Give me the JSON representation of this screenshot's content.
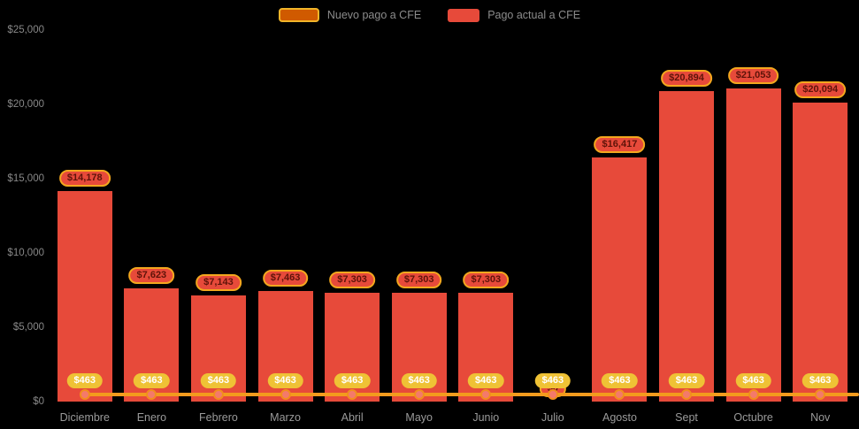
{
  "legend": {
    "items": [
      {
        "label": "Nuevo pago a CFE",
        "color": "#D05A00",
        "border": "#F0B429",
        "type": "line"
      },
      {
        "label": "Pago actual a CFE",
        "color": "#E74A3A",
        "type": "bar"
      }
    ]
  },
  "y_axis": {
    "ticks": [
      {
        "value": 0,
        "label": "$0"
      },
      {
        "value": 5000,
        "label": "$5,000"
      },
      {
        "value": 10000,
        "label": "$10,000"
      },
      {
        "value": 15000,
        "label": "$15,000"
      },
      {
        "value": 20000,
        "label": "$20,000"
      },
      {
        "value": 25000,
        "label": "$25,000"
      }
    ]
  },
  "chart_data": {
    "type": "bar",
    "categories": [
      "Diciembre",
      "Enero",
      "Febrero",
      "Marzo",
      "Abril",
      "Mayo",
      "Junio",
      "Julio",
      "Agosto",
      "Sept",
      "Octubre",
      "Nov"
    ],
    "series": [
      {
        "name": "Pago actual a CFE",
        "type": "bar",
        "color": "#E74A3A",
        "values": [
          14178,
          7623,
          7143,
          7463,
          7303,
          7303,
          7303,
          0,
          16417,
          20894,
          21053,
          20094
        ],
        "labels": [
          "$14,178",
          "$7,623",
          "$7,143",
          "$7,463",
          "$7,303",
          "$7,303",
          "$7,303",
          "$0",
          "$16,417",
          "$20,894",
          "$21,053",
          "$20,094"
        ]
      },
      {
        "name": "Nuevo pago a CFE",
        "type": "line",
        "color": "#F39B1D",
        "values": [
          463,
          463,
          463,
          463,
          463,
          463,
          463,
          463,
          463,
          463,
          463,
          463
        ],
        "labels": [
          "$463",
          "$463",
          "$463",
          "$463",
          "$463",
          "$463",
          "$463",
          "$463",
          "$463",
          "$463",
          "$463",
          "$463"
        ]
      }
    ],
    "ylim": [
      0,
      25000
    ],
    "grid": false,
    "legend_position": "top",
    "background": "#000000"
  }
}
